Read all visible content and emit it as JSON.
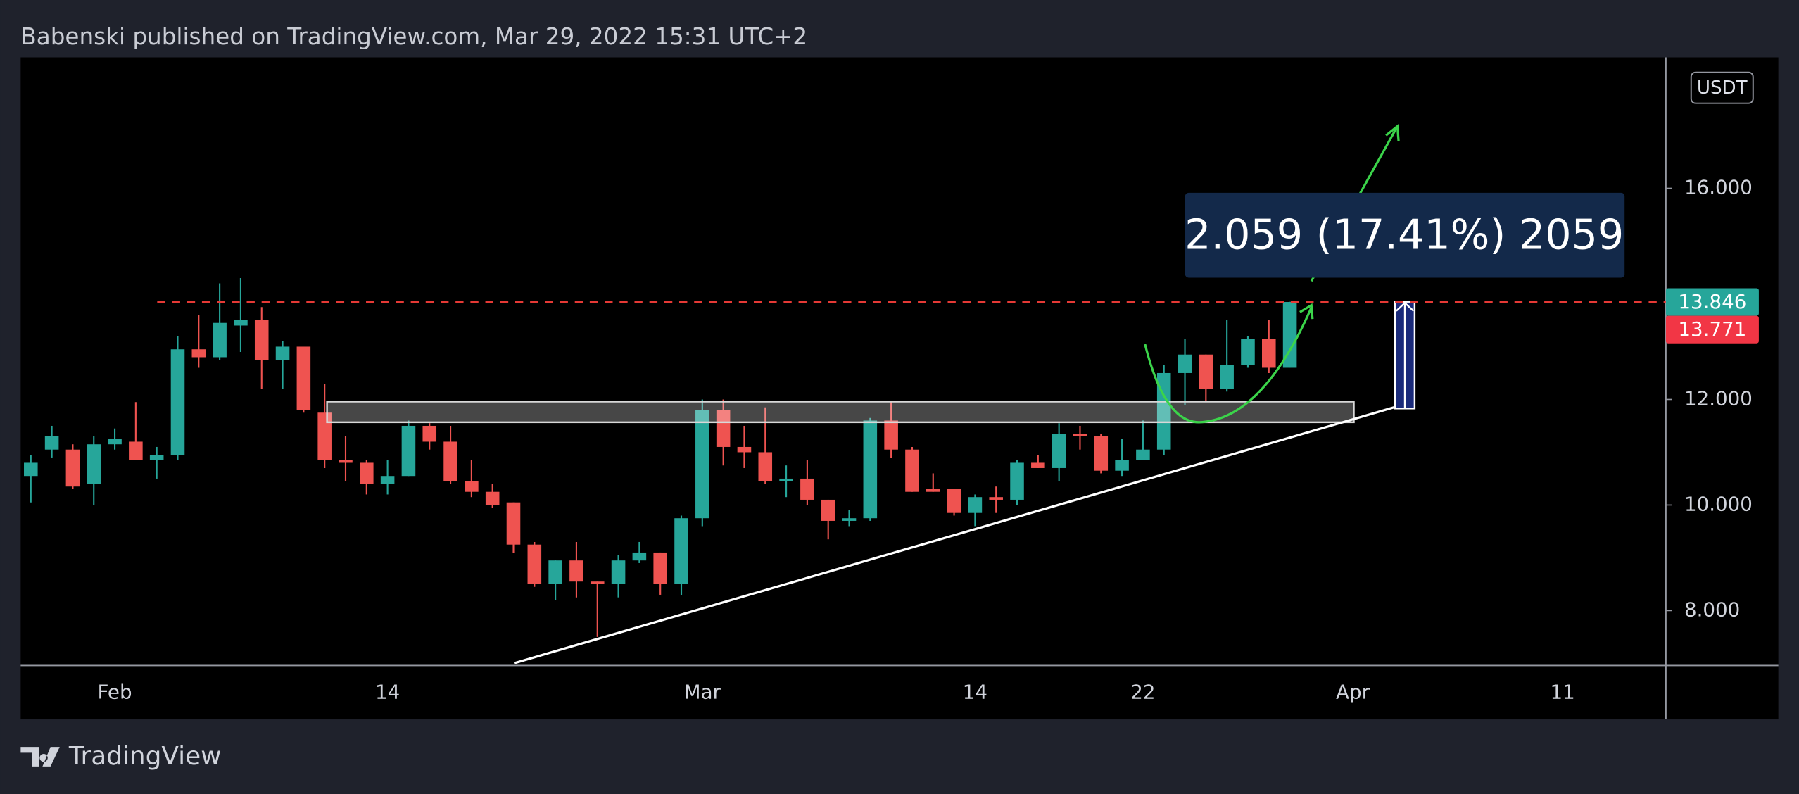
{
  "header": {
    "text": "Babenski published on TradingView.com, Mar 29, 2022 15:31 UTC+2"
  },
  "footer": {
    "brand": "TradingView"
  },
  "chart_data": {
    "type": "candlestick",
    "currency": "USDT",
    "annotations": {
      "measure": "2.059 (17.41%) 2059"
    },
    "categories": [
      null,
      null,
      null,
      null,
      "Feb",
      null,
      null,
      null,
      null,
      null,
      null,
      null,
      null,
      null,
      null,
      null,
      null,
      "14",
      null,
      null,
      null,
      null,
      null,
      null,
      null,
      null,
      null,
      null,
      null,
      null,
      null,
      null,
      "Mar",
      null,
      null,
      null,
      null,
      null,
      null,
      null,
      null,
      null,
      null,
      null,
      null,
      "14",
      null,
      null,
      null,
      null,
      null,
      null,
      null,
      "22",
      null,
      null,
      null,
      null,
      null,
      null,
      null,
      null,
      null,
      "Apr",
      null,
      null,
      null,
      null,
      null,
      null,
      null,
      null,
      null,
      "11",
      null,
      null,
      null,
      null
    ],
    "open": [
      10.55,
      11.05,
      11.05,
      10.4,
      11.15,
      11.2,
      10.85,
      10.95,
      12.95,
      12.8,
      13.4,
      13.5,
      12.75,
      13.0,
      11.75,
      10.85,
      10.8,
      10.4,
      10.55,
      11.5,
      11.2,
      10.45,
      10.25,
      10.05,
      9.25,
      8.5,
      8.95,
      8.55,
      8.5,
      8.95,
      9.1,
      8.5,
      9.75,
      11.8,
      11.1,
      11.0,
      10.45,
      10.5,
      10.1,
      9.7,
      9.75,
      11.6,
      11.05,
      10.3,
      10.3,
      9.85,
      10.15,
      10.1,
      10.8,
      10.7,
      11.35,
      11.3,
      10.65,
      10.85,
      11.05,
      12.5,
      12.85,
      12.2,
      12.65,
      13.15,
      12.6,
      null,
      null,
      null,
      null,
      null,
      null,
      null,
      null,
      null,
      null,
      null,
      null,
      null,
      null,
      null,
      null,
      null
    ],
    "high": [
      10.95,
      11.5,
      11.15,
      11.3,
      11.45,
      11.95,
      11.1,
      13.2,
      13.6,
      14.2,
      14.3,
      13.75,
      13.1,
      13.0,
      12.3,
      11.3,
      10.85,
      10.85,
      11.6,
      11.55,
      11.5,
      10.85,
      10.4,
      10.05,
      9.3,
      8.95,
      9.3,
      8.55,
      9.05,
      9.3,
      9.1,
      9.8,
      12.0,
      12.0,
      11.5,
      11.85,
      10.75,
      10.85,
      10.1,
      9.9,
      11.65,
      11.95,
      11.1,
      10.6,
      10.3,
      10.2,
      10.35,
      10.85,
      10.95,
      11.55,
      11.5,
      11.35,
      11.25,
      11.6,
      12.65,
      13.15,
      12.85,
      13.5,
      13.2,
      13.5,
      13.85,
      null,
      null,
      null,
      null,
      null,
      null,
      null,
      null,
      null,
      null,
      null,
      null,
      null,
      null,
      null,
      null,
      null
    ],
    "low": [
      10.05,
      10.9,
      10.3,
      10.0,
      11.05,
      10.85,
      10.5,
      10.85,
      12.6,
      12.75,
      12.9,
      12.2,
      12.2,
      11.75,
      10.7,
      10.45,
      10.2,
      10.2,
      10.55,
      11.05,
      10.4,
      10.15,
      9.95,
      9.1,
      8.45,
      8.2,
      8.25,
      7.5,
      8.25,
      8.9,
      8.3,
      8.3,
      9.6,
      10.75,
      10.7,
      10.4,
      10.15,
      10.0,
      9.35,
      9.6,
      9.7,
      10.9,
      10.25,
      10.25,
      9.8,
      9.6,
      9.85,
      10.0,
      10.7,
      10.45,
      11.05,
      10.6,
      10.55,
      10.85,
      10.95,
      11.9,
      11.95,
      12.15,
      12.6,
      12.5,
      12.6,
      null,
      null,
      null,
      null,
      null,
      null,
      null,
      null,
      null,
      null,
      null,
      null,
      null,
      null,
      null,
      null,
      null
    ],
    "close": [
      10.8,
      11.3,
      10.35,
      11.15,
      11.25,
      10.85,
      10.95,
      12.95,
      12.8,
      13.45,
      13.5,
      12.75,
      13.0,
      11.8,
      10.85,
      10.8,
      10.4,
      10.55,
      11.5,
      11.2,
      10.45,
      10.25,
      10.0,
      9.25,
      8.5,
      8.95,
      8.55,
      8.5,
      8.95,
      9.1,
      8.5,
      9.75,
      11.8,
      11.1,
      11.0,
      10.45,
      10.5,
      10.1,
      9.7,
      9.75,
      11.6,
      11.05,
      10.25,
      10.25,
      9.85,
      10.15,
      10.1,
      10.8,
      10.7,
      11.35,
      11.3,
      10.65,
      10.85,
      11.05,
      12.5,
      12.85,
      12.2,
      12.65,
      13.15,
      12.6,
      13.846,
      null,
      null,
      null,
      null,
      null,
      null,
      null,
      null,
      null,
      null,
      null,
      null,
      null,
      null,
      null,
      null,
      null
    ],
    "up_color": "#26a69a",
    "down_color": "#ef5350",
    "ylim": [
      6.96,
      18.48
    ],
    "yticks": [
      {
        "value": 8,
        "label": "8.000"
      },
      {
        "value": 10,
        "label": "10.000"
      },
      {
        "value": 12,
        "label": "12.000"
      },
      {
        "value": 16,
        "label": "16.000"
      }
    ],
    "price_tags": [
      {
        "value": 13.846,
        "color": "#26a69a"
      },
      {
        "value": 13.771,
        "color": "#f23645"
      }
    ]
  }
}
